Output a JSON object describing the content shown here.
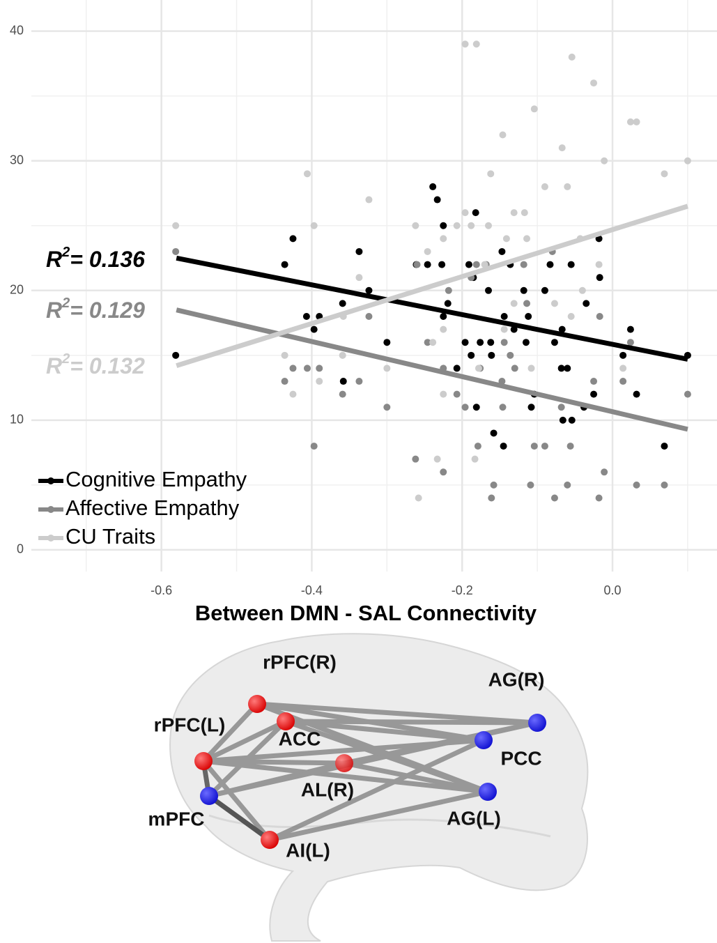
{
  "chart_data": {
    "type": "scatter",
    "x_label": "Between DMN - SAL Connectivity",
    "xlim": [
      -0.773,
      0.139
    ],
    "ylim": [
      -1.67,
      42.4
    ],
    "xticks": [
      -0.6,
      -0.4,
      -0.2,
      {
        "value": 0,
        "label": "0.0"
      }
    ],
    "yticks": [
      0,
      10,
      20,
      30,
      40
    ],
    "xminorticks": [
      -0.7,
      -0.5,
      -0.3,
      -0.1,
      0.1
    ],
    "yminorticks": [
      5,
      15,
      25,
      35
    ],
    "grid": true,
    "legend": "bottom-left",
    "series": [
      {
        "name": "Cognitive Empathy",
        "color": "#000000",
        "x": [
          -0.581,
          -0.425,
          -0.436,
          -0.407,
          -0.397,
          -0.39,
          -0.359,
          -0.358,
          -0.337,
          -0.324,
          -0.3,
          -0.261,
          -0.246,
          -0.239,
          -0.233,
          -0.225,
          -0.227,
          -0.225,
          -0.219,
          -0.207,
          -0.196,
          -0.191,
          -0.188,
          -0.182,
          -0.181,
          -0.185,
          -0.176,
          -0.165,
          -0.162,
          -0.158,
          -0.161,
          -0.147,
          -0.144,
          -0.145,
          -0.136,
          -0.131,
          -0.118,
          -0.112,
          -0.115,
          -0.108,
          -0.104,
          -0.09,
          -0.083,
          -0.077,
          -0.068,
          -0.067,
          -0.066,
          -0.06,
          -0.054,
          -0.055,
          -0.035,
          -0.038,
          -0.025,
          -0.018,
          -0.017,
          0.014,
          0.024,
          0.032,
          0.069,
          0.1
        ],
        "values": [
          15,
          24,
          22,
          18,
          17,
          18,
          19,
          13,
          23,
          20,
          16,
          22,
          22,
          28,
          27,
          25,
          22,
          18,
          19,
          14,
          16,
          22,
          15,
          26,
          11,
          21,
          16,
          20,
          16,
          9,
          15,
          23,
          18,
          8,
          22,
          17,
          20,
          18,
          16,
          11,
          12,
          20,
          22,
          16,
          14,
          17,
          10,
          14,
          10,
          22,
          19,
          11,
          12,
          24,
          21,
          15,
          17,
          12,
          8,
          15
        ],
        "fit": {
          "x": [
            -0.58,
            0.1
          ],
          "values": [
            22.5,
            14.7
          ]
        }
      },
      {
        "name": "Affective Empathy",
        "color": "#888888",
        "x": [
          -0.581,
          -0.436,
          -0.425,
          -0.406,
          -0.39,
          -0.397,
          -0.359,
          -0.337,
          -0.324,
          -0.3,
          -0.262,
          -0.26,
          -0.246,
          -0.225,
          -0.225,
          -0.218,
          -0.207,
          -0.196,
          -0.188,
          -0.181,
          -0.179,
          -0.176,
          -0.168,
          -0.161,
          -0.158,
          -0.147,
          -0.144,
          -0.146,
          -0.136,
          -0.13,
          -0.118,
          -0.114,
          -0.109,
          -0.104,
          -0.09,
          -0.08,
          -0.077,
          -0.068,
          -0.06,
          -0.056,
          -0.025,
          -0.018,
          -0.017,
          -0.011,
          0.014,
          0.024,
          0.032,
          0.069,
          0.1
        ],
        "values": [
          23,
          13,
          14,
          14,
          14,
          8,
          12,
          13,
          18,
          11,
          7,
          22,
          16,
          6,
          14,
          20,
          12,
          11,
          21,
          22,
          8,
          14,
          22,
          4,
          5,
          13,
          16,
          11,
          15,
          14,
          22,
          19,
          5,
          8,
          8,
          23,
          4,
          11,
          5,
          8,
          13,
          4,
          18,
          6,
          13,
          16,
          5,
          5,
          12
        ],
        "fit": {
          "x": [
            -0.58,
            0.1
          ],
          "values": [
            18.5,
            9.3
          ]
        }
      },
      {
        "name": "CU Traits",
        "color": "#cccccc",
        "x": [
          -0.581,
          -0.436,
          -0.425,
          -0.406,
          -0.397,
          -0.39,
          -0.359,
          -0.358,
          -0.337,
          -0.324,
          -0.3,
          -0.262,
          -0.258,
          -0.246,
          -0.239,
          -0.233,
          -0.225,
          -0.225,
          -0.225,
          -0.207,
          -0.196,
          -0.196,
          -0.188,
          -0.181,
          -0.183,
          -0.178,
          -0.17,
          -0.165,
          -0.162,
          -0.146,
          -0.144,
          -0.141,
          -0.131,
          -0.131,
          -0.117,
          -0.114,
          -0.104,
          -0.108,
          -0.09,
          -0.077,
          -0.067,
          -0.06,
          -0.055,
          -0.054,
          -0.043,
          -0.04,
          -0.025,
          -0.018,
          -0.011,
          0.014,
          0.024,
          0.032,
          0.069,
          0.1
        ],
        "values": [
          25,
          15,
          12,
          29,
          25,
          13,
          15,
          18,
          21,
          27,
          14,
          25,
          4,
          23,
          16,
          7,
          12,
          24,
          17,
          25,
          26,
          39,
          25,
          39,
          7,
          14,
          22,
          25,
          29,
          32,
          17,
          24,
          26,
          19,
          26,
          24,
          34,
          14,
          28,
          19,
          31,
          28,
          18,
          38,
          24,
          20,
          36,
          22,
          30,
          14,
          33,
          33,
          29,
          30
        ],
        "fit": {
          "x": [
            -0.58,
            0.1
          ],
          "values": [
            14.2,
            26.5
          ]
        }
      }
    ],
    "annotations": [
      {
        "base": "R",
        "sup": "2",
        "rest": "= 0.136",
        "color": "#000000"
      },
      {
        "base": "R",
        "sup": "2",
        "rest": "= 0.129",
        "color": "#888888"
      },
      {
        "base": "R",
        "sup": "2",
        "rest": "= 0.132",
        "color": "#cccccc"
      }
    ]
  },
  "diagram": {
    "nodes": [
      {
        "label": "rPFC(R)"
      },
      {
        "label": "ACC"
      },
      {
        "label": "rPFC(L)"
      },
      {
        "label": "AL(R)"
      },
      {
        "label": "mPFC"
      },
      {
        "label": "AI(L)"
      },
      {
        "label": "AG(R)"
      },
      {
        "label": "PCC"
      },
      {
        "label": "AG(L)"
      }
    ]
  }
}
